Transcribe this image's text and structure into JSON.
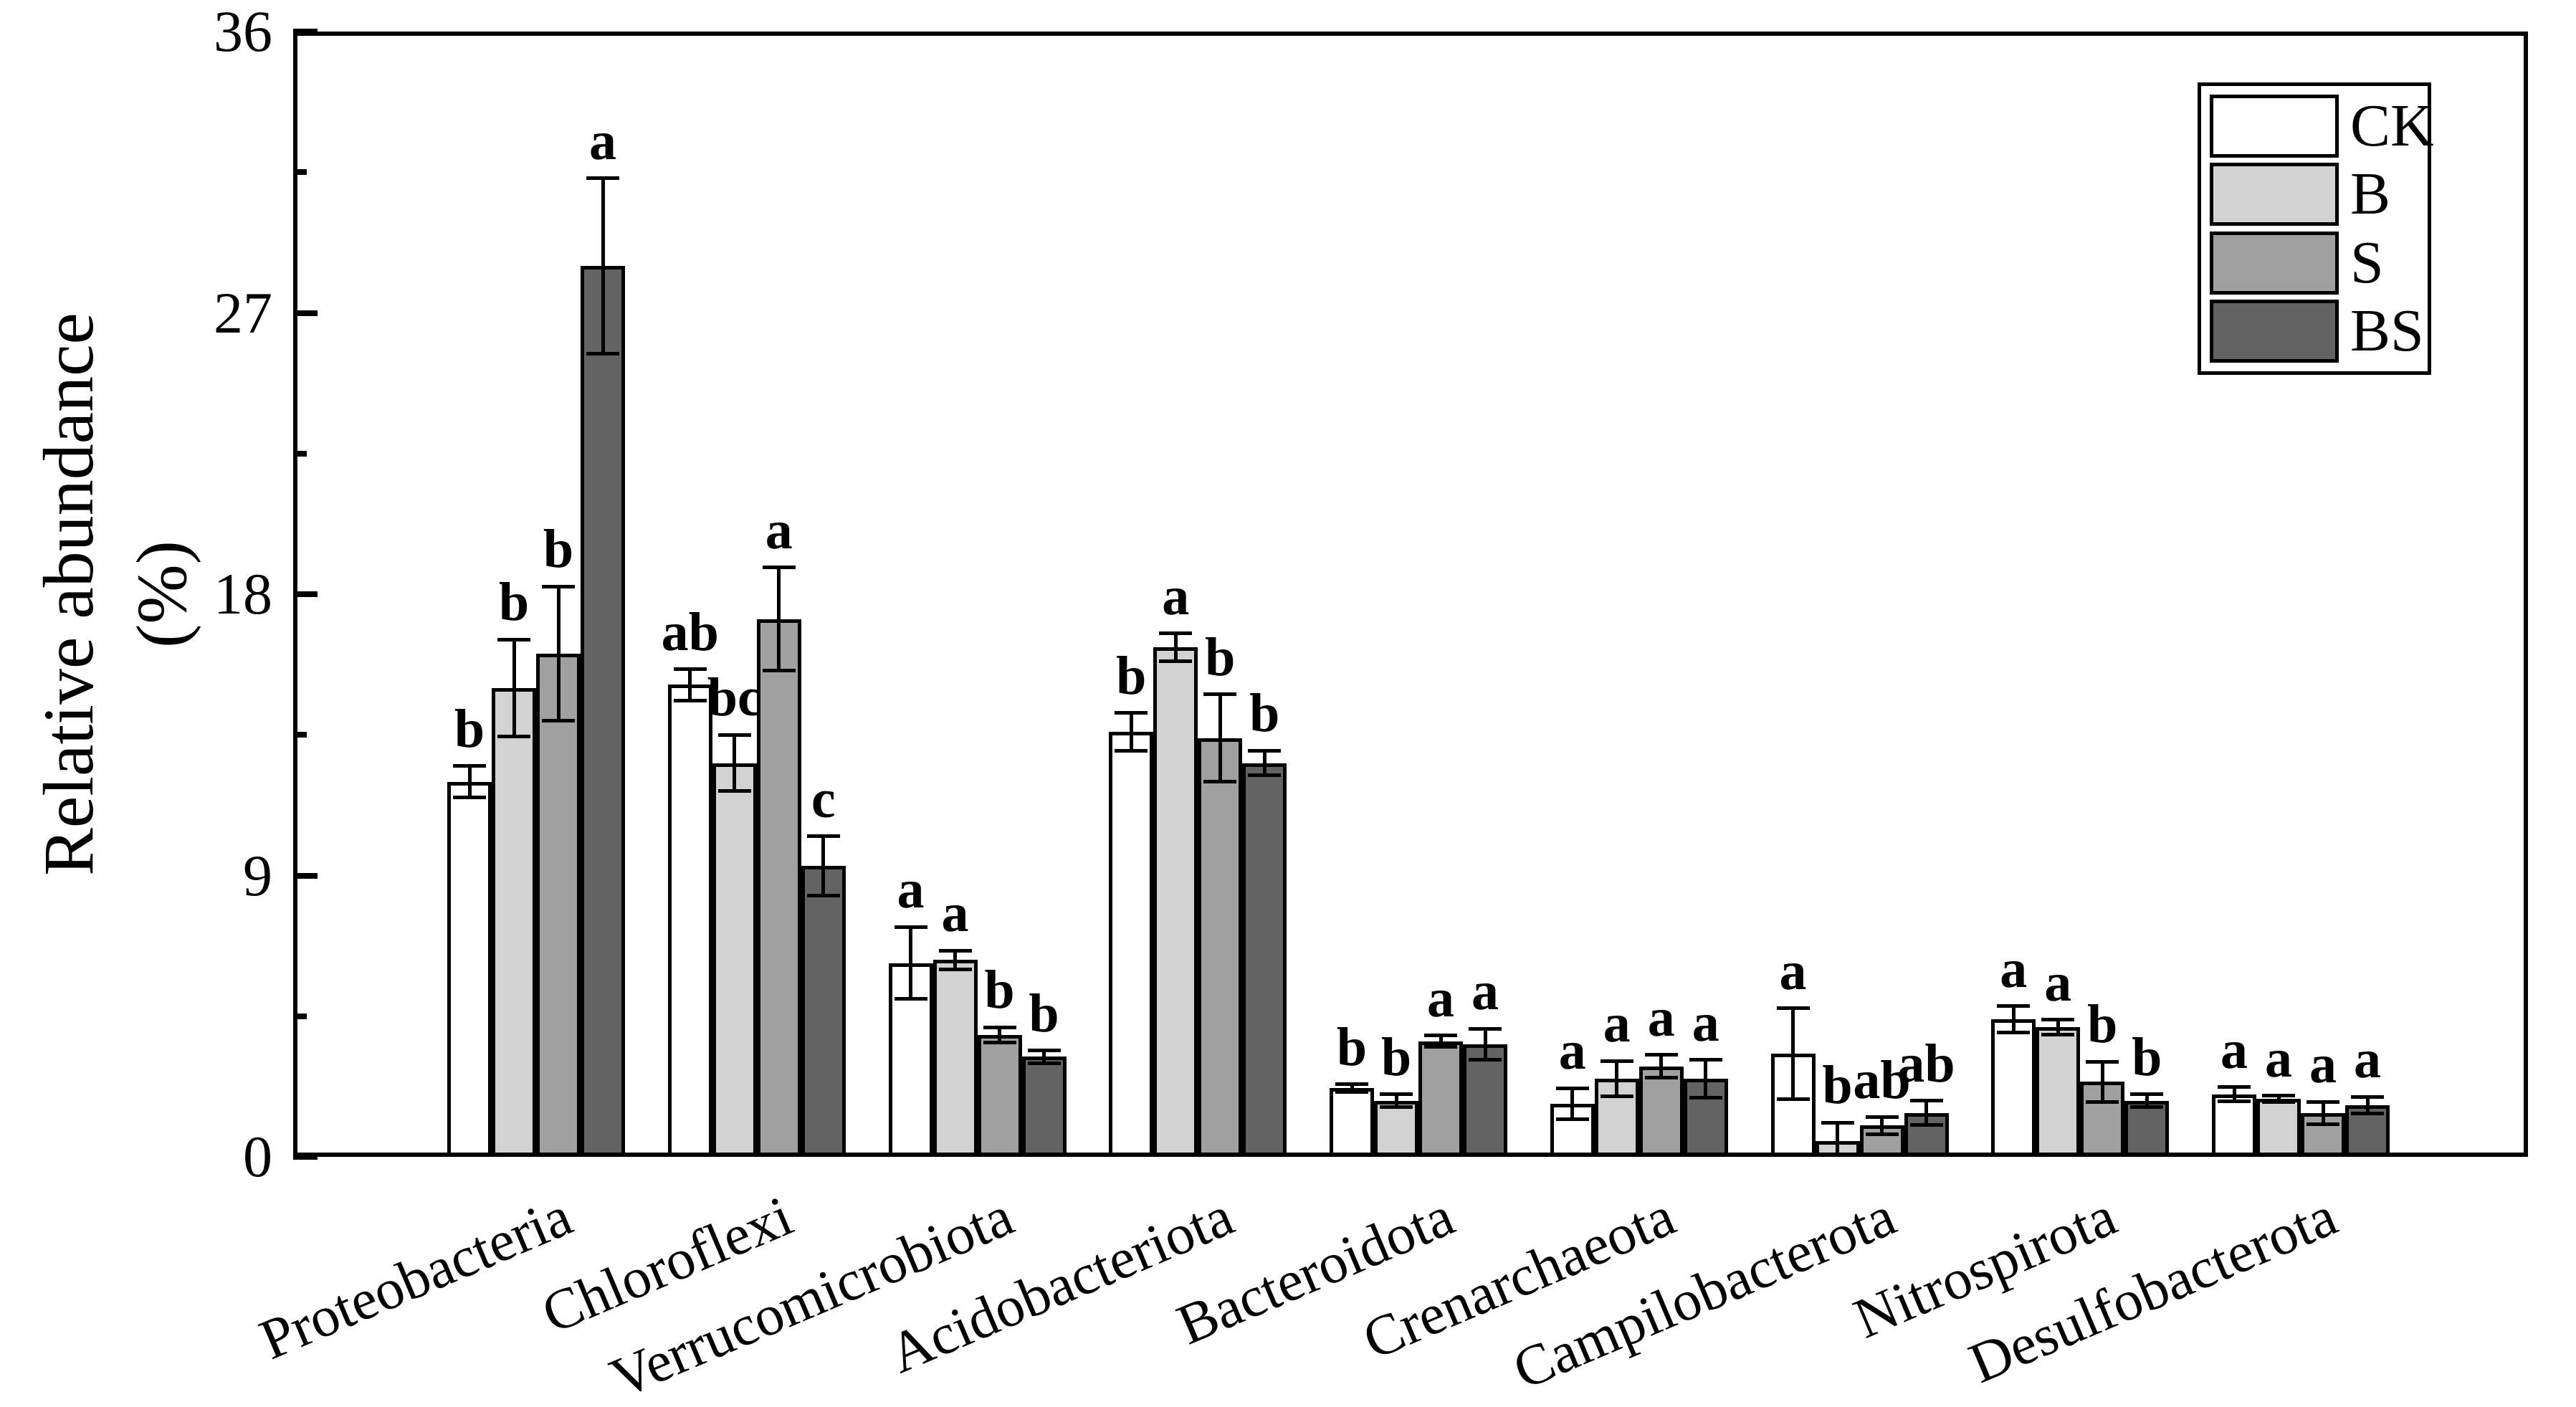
{
  "chart_data": {
    "type": "bar",
    "title": "",
    "xlabel": "",
    "ylabel": "Relative abundance (%)",
    "ylim": [
      0,
      36
    ],
    "yticks": [
      0,
      9,
      18,
      27,
      36
    ],
    "minor_yticks": [
      4.5,
      13.5,
      22.5,
      31.5
    ],
    "grid": false,
    "legend_position": "top-right",
    "categories": [
      "Proteobacteria",
      "Chloroflexi",
      "Verrucomicrobiota",
      "Acidobacteriota",
      "Bacteroidota",
      "Crenarchaeota",
      "Campilobacterota",
      "Nitrospirota",
      "Desulfobacterota"
    ],
    "series": [
      {
        "name": "CK",
        "color": "#ffffff",
        "values": [
          12.0,
          15.1,
          6.2,
          13.6,
          2.2,
          1.7,
          3.3,
          4.4,
          2.0
        ],
        "errors": [
          0.5,
          0.5,
          1.15,
          0.6,
          0.12,
          0.5,
          1.45,
          0.42,
          0.23
        ],
        "letters": [
          "b",
          "ab",
          "a",
          "b",
          "b",
          "a",
          "a",
          "a",
          "a"
        ]
      },
      {
        "name": "B",
        "color": "#d2d2d2",
        "values": [
          15.0,
          12.6,
          6.3,
          16.3,
          1.8,
          2.5,
          0.5,
          4.15,
          1.85
        ],
        "errors": [
          1.55,
          0.9,
          0.3,
          0.45,
          0.2,
          0.57,
          0.6,
          0.23,
          0.1
        ],
        "letters": [
          "b",
          "bc",
          "a",
          "a",
          "b",
          "a",
          "b",
          "a",
          "a"
        ]
      },
      {
        "name": "S",
        "color": "#a0a0a0",
        "values": [
          16.1,
          17.2,
          3.9,
          13.4,
          3.7,
          2.9,
          1.0,
          2.4,
          1.4
        ],
        "errors": [
          2.15,
          1.65,
          0.25,
          1.4,
          0.18,
          0.36,
          0.27,
          0.64,
          0.36
        ],
        "letters": [
          "b",
          "a",
          "b",
          "b",
          "a",
          "a",
          "ab",
          "b",
          "a"
        ]
      },
      {
        "name": "BS",
        "color": "#636363",
        "values": [
          28.5,
          9.3,
          3.2,
          12.6,
          3.6,
          2.5,
          1.4,
          1.8,
          1.65
        ],
        "errors": [
          2.8,
          0.95,
          0.2,
          0.4,
          0.5,
          0.6,
          0.39,
          0.2,
          0.27
        ],
        "letters": [
          "a",
          "c",
          "b",
          "b",
          "a",
          "a",
          "ab",
          "b",
          "a"
        ]
      }
    ]
  },
  "y_axis": {
    "label_line1": "Relative abundance",
    "label_line2": "(%)",
    "tick_labels": [
      "0",
      "9",
      "18",
      "27",
      "36"
    ]
  },
  "legend": {
    "entries": [
      {
        "label": "CK",
        "color": "#ffffff"
      },
      {
        "label": "B",
        "color": "#d2d2d2"
      },
      {
        "label": "S",
        "color": "#a0a0a0"
      },
      {
        "label": "BS",
        "color": "#636363"
      }
    ]
  }
}
